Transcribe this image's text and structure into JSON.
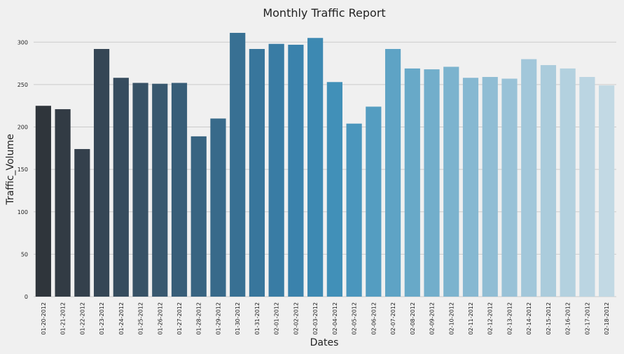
{
  "chart_data": {
    "type": "bar",
    "title": "Monthly Traffic Report",
    "xlabel": "Dates",
    "ylabel": "Traffic_Volume",
    "ylim": [
      0,
      325
    ],
    "yticks": [
      0,
      50,
      100,
      150,
      200,
      250,
      300
    ],
    "grid": true,
    "categories": [
      "01-20-2012",
      "01-21-2012",
      "01-22-2012",
      "01-23-2012",
      "01-24-2012",
      "01-25-2012",
      "01-26-2012",
      "01-27-2012",
      "01-28-2012",
      "01-29-2012",
      "01-30-2012",
      "01-31-2012",
      "02-01-2012",
      "02-02-2012",
      "02-03-2012",
      "02-04-2012",
      "02-05-2012",
      "02-06-2012",
      "02-07-2012",
      "02-08-2012",
      "02-09-2012",
      "02-10-2012",
      "02-11-2012",
      "02-12-2012",
      "02-13-2012",
      "02-14-2012",
      "02-15-2012",
      "02-16-2012",
      "02-17-2012",
      "02-18-2012"
    ],
    "values": [
      225,
      221,
      174,
      292,
      258,
      252,
      251,
      252,
      189,
      210,
      311,
      292,
      298,
      297,
      305,
      253,
      204,
      224,
      292,
      269,
      268,
      271,
      258,
      259,
      257,
      280,
      273,
      269,
      259,
      249
    ],
    "colors": [
      "#2f353b",
      "#323b44",
      "#34404c",
      "#354655",
      "#364c5e",
      "#375266",
      "#38586f",
      "#385e78",
      "#386481",
      "#386a8a",
      "#387093",
      "#38769c",
      "#397ca4",
      "#3a82ac",
      "#3d89b2",
      "#4190b8",
      "#4a96bd",
      "#549dc1",
      "#5ea3c5",
      "#68a9c8",
      "#72aecb",
      "#7cb3ce",
      "#86b8d1",
      "#90bdd4",
      "#99c2d7",
      "#a2c7da",
      "#abccdc",
      "#b3d1df",
      "#bbd5e2",
      "#c2d9e4"
    ]
  }
}
